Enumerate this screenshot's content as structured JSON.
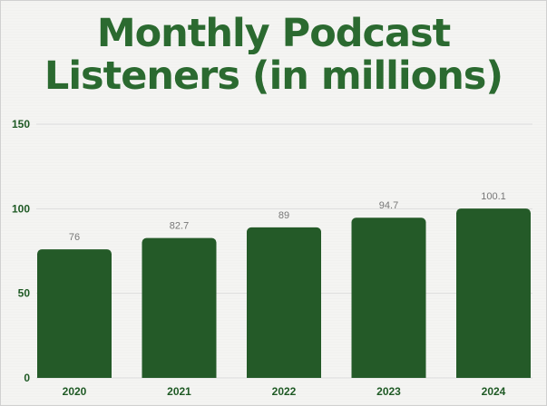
{
  "title": {
    "line1": "Monthly Podcast",
    "line2": "Listeners (in millions)"
  },
  "colors": {
    "bar": "#245a28",
    "title": "#2b6a30",
    "axis_text": "#1f5a25",
    "data_label": "#777777",
    "grid": "#dcdcdc"
  },
  "chart_data": {
    "type": "bar",
    "title": "Monthly Podcast Listeners (in millions)",
    "categories": [
      "2020",
      "2021",
      "2022",
      "2023",
      "2024"
    ],
    "values": [
      76,
      82.7,
      89,
      94.7,
      100.1
    ],
    "value_labels": [
      "76",
      "82.7",
      "89",
      "94.7",
      "100.1"
    ],
    "xlabel": "",
    "ylabel": "",
    "ylim": [
      0,
      150
    ],
    "yticks": [
      0,
      50,
      100,
      150
    ],
    "ytick_labels": [
      "0",
      "50",
      "100",
      "150"
    ],
    "grid": true,
    "legend": "none"
  }
}
